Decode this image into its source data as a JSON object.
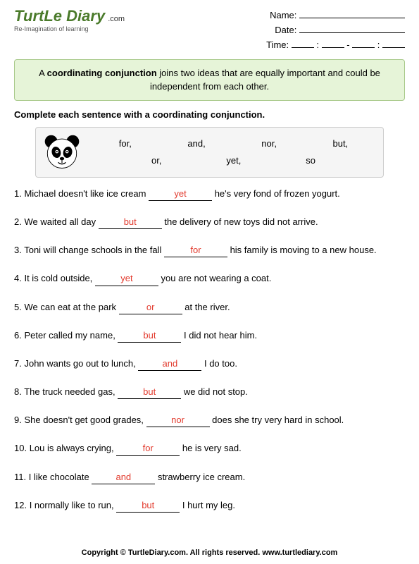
{
  "logo": {
    "main": "TurtLe Diary",
    "dotcom": ".com",
    "sub": "Re-Imagination of learning"
  },
  "fields": {
    "name_label": "Name:",
    "date_label": "Date:",
    "time_label": "Time:"
  },
  "definition": {
    "pre": "A ",
    "bold": "coordinating conjunction",
    "post": " joins two ideas that are equally important and could be independent from each other."
  },
  "instruction": "Complete each sentence with a coordinating conjunction.",
  "word_bank": {
    "row1": [
      "for,",
      "and,",
      "nor,",
      "but,"
    ],
    "row2": [
      "or,",
      "yet,",
      "so"
    ]
  },
  "questions": [
    {
      "n": "1.",
      "pre": "Michael doesn't like ice cream ",
      "ans": "yet",
      "post": " he's very fond of frozen yogurt."
    },
    {
      "n": "2.",
      "pre": "We waited all day ",
      "ans": "but",
      "post": " the delivery of new toys did not arrive."
    },
    {
      "n": "3.",
      "pre": "Toni will change schools in the fall ",
      "ans": "for",
      "post": " his family is moving to a new house."
    },
    {
      "n": "4.",
      "pre": "It is cold outside, ",
      "ans": "yet",
      "post": " you are not wearing a coat."
    },
    {
      "n": "5.",
      "pre": "We can eat at the park ",
      "ans": "or",
      "post": " at the river."
    },
    {
      "n": "6.",
      "pre": "Peter called my name, ",
      "ans": "but",
      "post": " I did not hear him."
    },
    {
      "n": "7.",
      "pre": "John wants go out to lunch, ",
      "ans": "and",
      "post": " I do too."
    },
    {
      "n": "8.",
      "pre": "The truck needed gas, ",
      "ans": "but",
      "post": " we did not stop."
    },
    {
      "n": "9.",
      "pre": "She doesn't get good grades, ",
      "ans": "nor",
      "post": " does she try very hard in school."
    },
    {
      "n": "10.",
      "pre": "Lou is always crying, ",
      "ans": "for",
      "post": " he is very sad."
    },
    {
      "n": "11.",
      "pre": "I like chocolate ",
      "ans": "and",
      "post": " strawberry ice cream."
    },
    {
      "n": "12.",
      "pre": "I normally like to run, ",
      "ans": "but",
      "post": " I hurt my leg."
    }
  ],
  "footer": "Copyright © TurtleDiary.com. All rights reserved. www.turtlediary.com",
  "colors": {
    "answer": "#e23b2e",
    "logo_green": "#4a7a2a",
    "box_bg": "#e6f4d8",
    "box_border": "#a8c98a",
    "bank_bg": "#f5f5f5",
    "bank_border": "#cccccc"
  }
}
